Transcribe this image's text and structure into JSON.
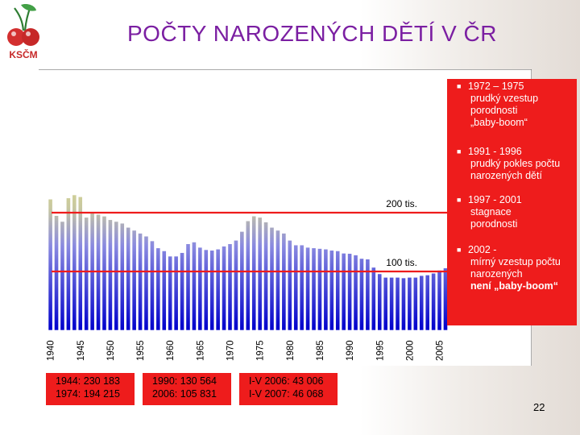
{
  "slide": {
    "title": "POČTY NAROZENÝCH DĚTÍ V ČR",
    "logo_text": "KSČM",
    "page_number": "22"
  },
  "bullets": [
    {
      "heading": "1972 – 1975",
      "lines": [
        "prudký vzestup",
        "porodnosti",
        "„baby-boom“"
      ],
      "bold_last": false
    },
    {
      "heading": "1991 - 1996",
      "lines": [
        "prudký pokles počtu",
        "narozených dětí"
      ],
      "bold_last": false
    },
    {
      "heading": "1997 - 2001",
      "lines": [
        "stagnace",
        "porodnosti"
      ],
      "bold_last": false
    },
    {
      "heading": "2002 -",
      "lines": [
        "mírný vzestup počtu",
        "narozených",
        "není „baby-boom“"
      ],
      "bold_last": true
    }
  ],
  "info_boxes": [
    {
      "line1": "1944: 230 183",
      "line2": "1974: 194 215"
    },
    {
      "line1": "1990: 130 564",
      "line2": "2006: 105 831"
    },
    {
      "line1": "I-V 2006: 43 006",
      "line2": "I-V 2007: 46 068"
    }
  ],
  "colors": {
    "accent_red": "#ee1c1c",
    "title_purple": "#7b1fa2",
    "bar_top_yellow": "#ffff66",
    "bar_bottom_blue": "#0000cc"
  },
  "chart_data": {
    "type": "bar",
    "x": [
      1940,
      1941,
      1942,
      1943,
      1944,
      1945,
      1946,
      1947,
      1948,
      1949,
      1950,
      1951,
      1952,
      1953,
      1954,
      1955,
      1956,
      1957,
      1958,
      1959,
      1960,
      1961,
      1962,
      1963,
      1964,
      1965,
      1966,
      1967,
      1968,
      1969,
      1970,
      1971,
      1972,
      1973,
      1974,
      1975,
      1976,
      1977,
      1978,
      1979,
      1980,
      1981,
      1982,
      1983,
      1984,
      1985,
      1986,
      1987,
      1988,
      1989,
      1990,
      1991,
      1992,
      1993,
      1994,
      1995,
      1996,
      1997,
      1998,
      1999,
      2000,
      2001,
      2002,
      2003,
      2004,
      2005,
      2006
    ],
    "values": [
      223000,
      195000,
      185000,
      225000,
      230183,
      227000,
      192000,
      200000,
      197000,
      194000,
      188000,
      185000,
      182000,
      175000,
      170000,
      165000,
      160000,
      152000,
      140000,
      135000,
      126000,
      126000,
      132000,
      147000,
      150000,
      141000,
      137000,
      136000,
      138000,
      143000,
      147000,
      153000,
      168000,
      186000,
      194215,
      192000,
      184000,
      175000,
      170000,
      165000,
      153000,
      145000,
      145000,
      141000,
      140000,
      139000,
      138000,
      136000,
      135000,
      131000,
      130564,
      128000,
      122000,
      121000,
      107000,
      96000,
      90000,
      90000,
      90000,
      89000,
      90000,
      90000,
      93000,
      94000,
      97000,
      102000,
      105831
    ],
    "x_tick_labels": [
      "1940",
      "1945",
      "1950",
      "1955",
      "1960",
      "1965",
      "1970",
      "1975",
      "1980",
      "1985",
      "1990",
      "1995",
      "2000",
      "2005"
    ],
    "x_tick_values": [
      1940,
      1945,
      1950,
      1955,
      1960,
      1965,
      1970,
      1975,
      1980,
      1985,
      1990,
      1995,
      2000,
      2005
    ],
    "reference_lines": [
      {
        "value": 200000,
        "label": "200 tis."
      },
      {
        "value": 100000,
        "label": "100 tis."
      }
    ],
    "ylim": [
      0,
      240000
    ],
    "title": "",
    "xlabel": "",
    "ylabel": "",
    "grid": false
  }
}
